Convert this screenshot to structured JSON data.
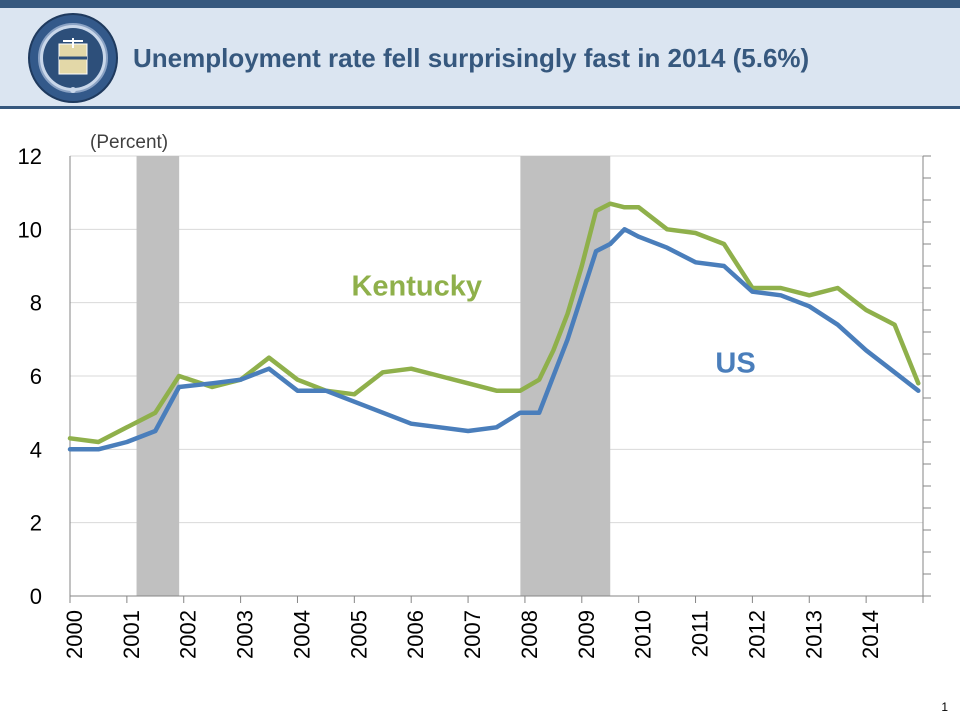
{
  "slide": {
    "title": "Unemployment rate fell surprisingly fast in 2014 (5.6%)",
    "page_number": "1",
    "logo": "Seal of the U.S. Department of the Treasury"
  },
  "chart_data": {
    "type": "line",
    "unit_label": "(Percent)",
    "x": [
      2000.0,
      2000.5,
      2001.0,
      2001.5,
      2001.917,
      2002.5,
      2003.0,
      2003.5,
      2004.0,
      2004.5,
      2005.0,
      2005.5,
      2006.0,
      2006.5,
      2007.0,
      2007.5,
      2007.917,
      2008.25,
      2008.5,
      2008.75,
      2009.0,
      2009.25,
      2009.5,
      2009.75,
      2010.0,
      2010.5,
      2011.0,
      2011.5,
      2012.0,
      2012.5,
      2013.0,
      2013.5,
      2014.0,
      2014.5,
      2014.917
    ],
    "series": [
      {
        "name": "US",
        "color": "#4a7ebb",
        "values": [
          4.0,
          4.0,
          4.2,
          4.5,
          5.7,
          5.8,
          5.9,
          6.2,
          5.6,
          5.6,
          5.3,
          5.0,
          4.7,
          4.6,
          4.5,
          4.6,
          5.0,
          5.0,
          6.0,
          7.0,
          8.2,
          9.4,
          9.6,
          10.0,
          9.8,
          9.5,
          9.1,
          9.0,
          8.3,
          8.2,
          7.9,
          7.4,
          6.7,
          6.1,
          5.6
        ]
      },
      {
        "name": "Kentucky",
        "color": "#8fb04b",
        "values": [
          4.3,
          4.2,
          4.6,
          5.0,
          6.0,
          5.7,
          5.9,
          6.5,
          5.9,
          5.6,
          5.5,
          6.1,
          6.2,
          6.0,
          5.8,
          5.6,
          5.6,
          5.9,
          6.7,
          7.7,
          9.0,
          10.5,
          10.7,
          10.6,
          10.6,
          10.0,
          9.9,
          9.6,
          8.4,
          8.4,
          8.2,
          8.4,
          7.8,
          7.4,
          5.8
        ]
      }
    ],
    "xlim": [
      2000,
      2015
    ],
    "ylim": [
      0,
      12
    ],
    "yticks": [
      "0",
      "2",
      "4",
      "6",
      "8",
      "10",
      "12"
    ],
    "xticks": [
      "2000",
      "2001",
      "2002",
      "2003",
      "2004",
      "2005",
      "2006",
      "2007",
      "2008",
      "2009",
      "2010",
      "2011",
      "2012",
      "2013",
      "2014"
    ],
    "recessions": [
      [
        2001.17,
        2001.92
      ],
      [
        2007.92,
        2009.5
      ]
    ],
    "grid": "horizontal",
    "recession_color": "#c0c0c0"
  }
}
